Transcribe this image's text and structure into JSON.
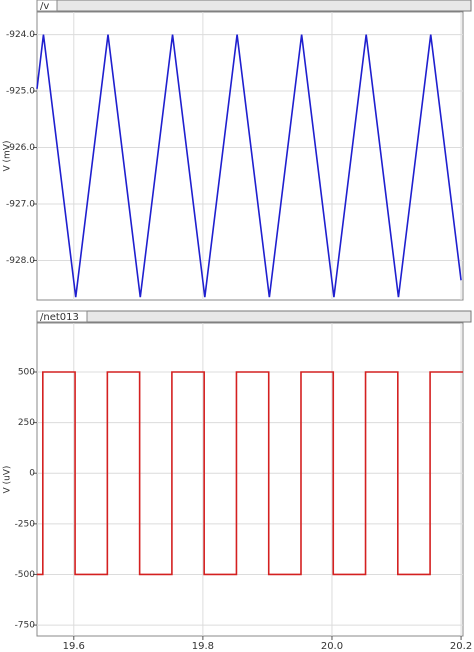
{
  "chart_data": [
    {
      "type": "line",
      "ylabel": "V (mV)",
      "x": [
        19.543,
        19.553,
        19.603,
        19.653,
        19.703,
        19.753,
        19.803,
        19.853,
        19.903,
        19.953,
        20.003,
        20.053,
        20.103,
        20.153,
        20.2
      ],
      "series": [
        {
          "name": "/v",
          "color": "#1f1fcf",
          "values": [
            -924.96,
            -924.0,
            -928.65,
            -924.0,
            -928.65,
            -924.0,
            -928.65,
            -924.0,
            -928.65,
            -924.0,
            -928.65,
            -924.0,
            -928.65,
            -924.0,
            -928.35
          ]
        }
      ],
      "xlim": [
        19.543,
        20.203
      ],
      "ylim": [
        -928.7,
        -923.6
      ],
      "yticks": [
        {
          "value": -924,
          "label": "-924.0"
        },
        {
          "value": -925,
          "label": "-925.0"
        },
        {
          "value": -926,
          "label": "-926.0"
        },
        {
          "value": -927,
          "label": "-927.0"
        },
        {
          "value": -928,
          "label": "-928.0"
        }
      ],
      "grid": true
    },
    {
      "type": "line",
      "ylabel": "V (uV)",
      "x": [
        19.543,
        19.552,
        19.552,
        19.602,
        19.602,
        19.652,
        19.652,
        19.702,
        19.702,
        19.752,
        19.752,
        19.802,
        19.802,
        19.852,
        19.852,
        19.902,
        19.902,
        19.952,
        19.952,
        20.002,
        20.002,
        20.052,
        20.052,
        20.102,
        20.102,
        20.152,
        20.152,
        20.203
      ],
      "series": [
        {
          "name": "/net013",
          "color": "#d42020",
          "values": [
            -500,
            -500,
            500,
            500,
            -500,
            -500,
            500,
            500,
            -500,
            -500,
            500,
            500,
            -500,
            -500,
            500,
            500,
            -500,
            -500,
            500,
            500,
            -500,
            -500,
            500,
            500,
            -500,
            -500,
            500,
            500
          ]
        }
      ],
      "xlim": [
        19.543,
        20.203
      ],
      "ylim": [
        -804,
        742
      ],
      "xticks": [
        19.6,
        19.8,
        {
          "value": 20,
          "label": "20.0"
        },
        20.2
      ],
      "yticks": [
        500,
        250,
        0,
        -250,
        -500,
        -750
      ],
      "grid": true
    }
  ]
}
